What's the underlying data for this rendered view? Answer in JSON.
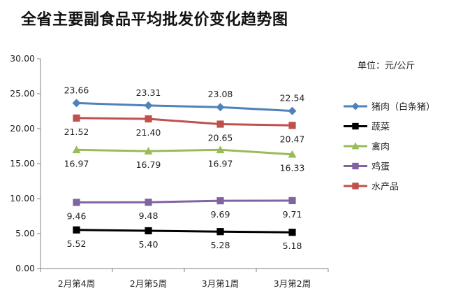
{
  "chart_data": {
    "type": "line",
    "title": "全省主要副食品平均批发价变化趋势图",
    "unit_note": "单位：元/公斤",
    "categories": [
      "2月第4周",
      "2月第5周",
      "3月第1周",
      "3月第2周"
    ],
    "ylim": [
      0,
      30
    ],
    "yticks": [
      "0.00",
      "5.00",
      "10.00",
      "15.00",
      "20.00",
      "25.00",
      "30.00"
    ],
    "grid": false,
    "legend_position": "right",
    "series": [
      {
        "name": "猪肉（白条猪）",
        "values": [
          23.66,
          23.31,
          23.08,
          22.54
        ],
        "labels": [
          "23.66",
          "23.31",
          "23.08",
          "22.54"
        ],
        "color": "#4F81BD",
        "marker": "diamond",
        "label_pos": "above"
      },
      {
        "name": "蔬菜",
        "values": [
          5.52,
          5.4,
          5.28,
          5.18
        ],
        "labels": [
          "5.52",
          "5.40",
          "5.28",
          "5.18"
        ],
        "color": "#000000",
        "marker": "square",
        "label_pos": "below"
      },
      {
        "name": "禽肉",
        "values": [
          16.97,
          16.79,
          16.97,
          16.33
        ],
        "labels": [
          "16.97",
          "16.79",
          "16.97",
          "16.33"
        ],
        "color": "#9BBB59",
        "marker": "triangle",
        "label_pos": "below"
      },
      {
        "name": "鸡蛋",
        "values": [
          9.46,
          9.48,
          9.69,
          9.71
        ],
        "labels": [
          "9.46",
          "9.48",
          "9.69",
          "9.71"
        ],
        "color": "#8064A2",
        "marker": "square",
        "label_pos": "below"
      },
      {
        "name": "水产品",
        "values": [
          21.52,
          21.4,
          20.65,
          20.47
        ],
        "labels": [
          "21.52",
          "21.40",
          "20.65",
          "20.47"
        ],
        "color": "#C0504D",
        "marker": "square",
        "label_pos": "below"
      }
    ]
  }
}
